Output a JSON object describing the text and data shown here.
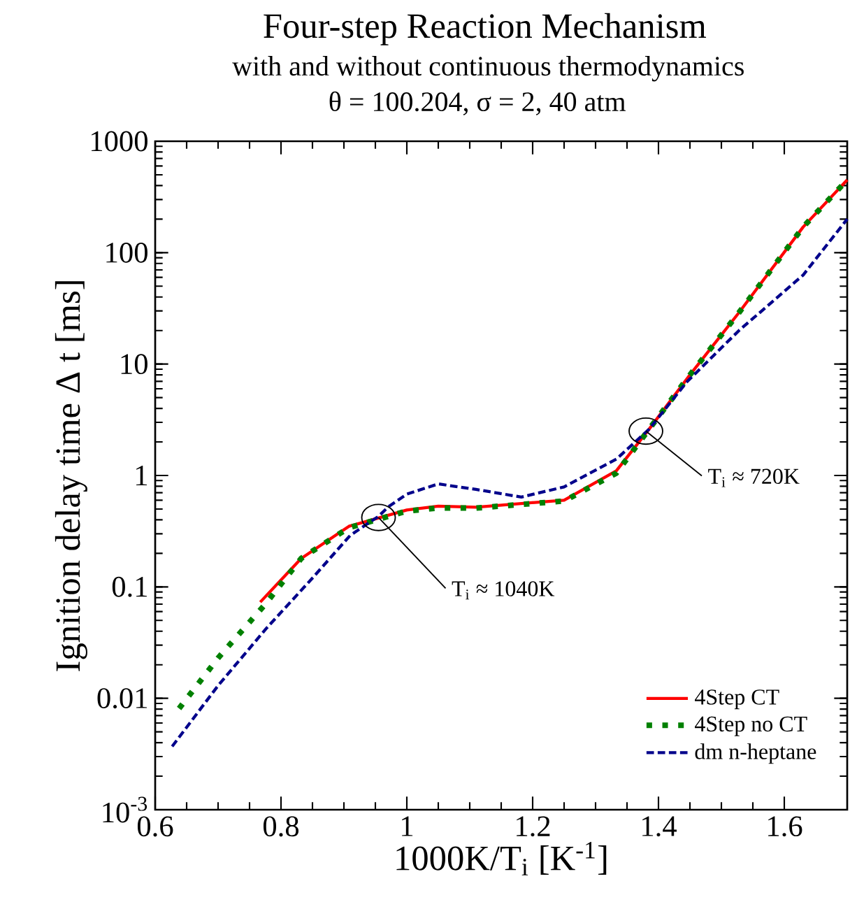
{
  "chart_data": {
    "type": "line",
    "title": "Four-step Reaction Mechanism",
    "subtitle": "with and without continuous thermodynamics",
    "xlabel": "1000K/T$_{i}$  [K$^{-1}$]",
    "ylabel": "Ignition delay time Δ t [ms]",
    "xlim": [
      0.6,
      1.7
    ],
    "xticks": [
      0.6,
      0.8,
      1,
      1.2,
      1.4,
      1.6
    ],
    "ylim": [
      0.001,
      1000
    ],
    "yticks": [
      {
        "value": 0.001,
        "label": "10$^{-3}$"
      },
      0.01,
      0.1,
      1,
      10,
      100,
      1000
    ],
    "log": "y",
    "grid": false,
    "legend": "bottom right",
    "marker": "none",
    "series": [
      {
        "name": "4Step CT",
        "color": "#ff0000",
        "line_style": "solid",
        "x": [
          0.767,
          0.832,
          0.908,
          1.0,
          1.05,
          1.11,
          1.25,
          1.333,
          1.385,
          1.45,
          1.528,
          1.63,
          1.7
        ],
        "values": [
          0.073,
          0.18,
          0.35,
          0.49,
          0.53,
          0.52,
          0.6,
          1.1,
          2.6,
          8,
          29,
          170,
          450
        ]
      },
      {
        "name": "4Step no CT",
        "color": "#008000",
        "line_style": "dotted",
        "x": [
          0.638,
          0.7,
          0.776,
          0.832,
          0.908,
          1.0,
          1.05,
          1.11,
          1.25,
          1.333,
          1.385,
          1.45,
          1.528,
          1.63,
          1.7
        ],
        "values": [
          0.0081,
          0.023,
          0.071,
          0.18,
          0.34,
          0.48,
          0.51,
          0.51,
          0.59,
          1.05,
          2.6,
          8,
          29,
          170,
          450
        ]
      },
      {
        "name": "dm n-heptane",
        "color": "#00008b",
        "line_style": "dashed",
        "x": [
          0.627,
          0.7,
          0.776,
          0.85,
          0.91,
          0.955,
          0.97,
          1.0,
          1.05,
          1.11,
          1.182,
          1.25,
          1.333,
          1.385,
          1.445,
          1.528,
          1.63,
          1.7
        ],
        "values": [
          0.0037,
          0.013,
          0.042,
          0.12,
          0.29,
          0.43,
          0.52,
          0.68,
          0.84,
          0.75,
          0.64,
          0.79,
          1.4,
          2.6,
          6.9,
          20,
          63,
          200
        ]
      }
    ],
    "annotations": [
      "θ = 100.204, σ = 2, 40 atm",
      {
        "text": "T$_{i}$ ≈ 1040K",
        "x": 0.955,
        "y": 0.42
      },
      {
        "text": "T$_{i}$ ≈ 720K",
        "x": 1.38,
        "y": 2.5
      }
    ]
  }
}
